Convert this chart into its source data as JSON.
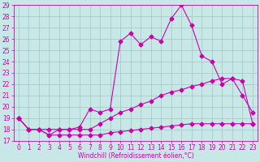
{
  "xlabel": "Windchill (Refroidissement éolien,°C)",
  "background_color": "#c8e8e8",
  "grid_color": "#a0c8c0",
  "line_color": "#cc00aa",
  "xlim": [
    -0.5,
    23.5
  ],
  "ylim": [
    17,
    29
  ],
  "xticks": [
    0,
    1,
    2,
    3,
    4,
    5,
    6,
    7,
    8,
    9,
    10,
    11,
    12,
    13,
    14,
    15,
    16,
    17,
    18,
    19,
    20,
    21,
    22,
    23
  ],
  "yticks": [
    17,
    18,
    19,
    20,
    21,
    22,
    23,
    24,
    25,
    26,
    27,
    28,
    29
  ],
  "line1_x": [
    0,
    1,
    2,
    3,
    4,
    5,
    6,
    7,
    8,
    9,
    10,
    11,
    12,
    13,
    14,
    15,
    16,
    17,
    18,
    19,
    20,
    21,
    22,
    23
  ],
  "line1_y": [
    19,
    18,
    18,
    17.5,
    18,
    18,
    18.2,
    19.8,
    19.5,
    19.8,
    25.8,
    26.5,
    25.5,
    26.2,
    25.8,
    27.8,
    29.0,
    27.2,
    24.5,
    24.0,
    22.0,
    22.5,
    21.0,
    19.5
  ],
  "line2_x": [
    0,
    1,
    2,
    3,
    4,
    5,
    6,
    7,
    8,
    9,
    10,
    11,
    12,
    13,
    14,
    15,
    16,
    17,
    18,
    19,
    20,
    21,
    22,
    23
  ],
  "line2_y": [
    19,
    18,
    18,
    18,
    18,
    18,
    18,
    18,
    18.5,
    19.0,
    19.5,
    19.8,
    20.2,
    20.5,
    21.0,
    21.3,
    21.5,
    21.8,
    22.0,
    22.3,
    22.5,
    22.5,
    22.3,
    18.5
  ],
  "line3_x": [
    0,
    1,
    2,
    3,
    4,
    5,
    6,
    7,
    8,
    9,
    10,
    11,
    12,
    13,
    14,
    15,
    16,
    17,
    18,
    19,
    20,
    21,
    22,
    23
  ],
  "line3_y": [
    19,
    18,
    18,
    17.5,
    17.5,
    17.5,
    17.5,
    17.5,
    17.5,
    17.7,
    17.8,
    17.9,
    18.0,
    18.1,
    18.2,
    18.3,
    18.4,
    18.5,
    18.5,
    18.5,
    18.5,
    18.5,
    18.5,
    18.5
  ],
  "markersize": 2.5,
  "linewidth": 0.8,
  "tick_fontsize": 5.5,
  "xlabel_fontsize": 5.5
}
